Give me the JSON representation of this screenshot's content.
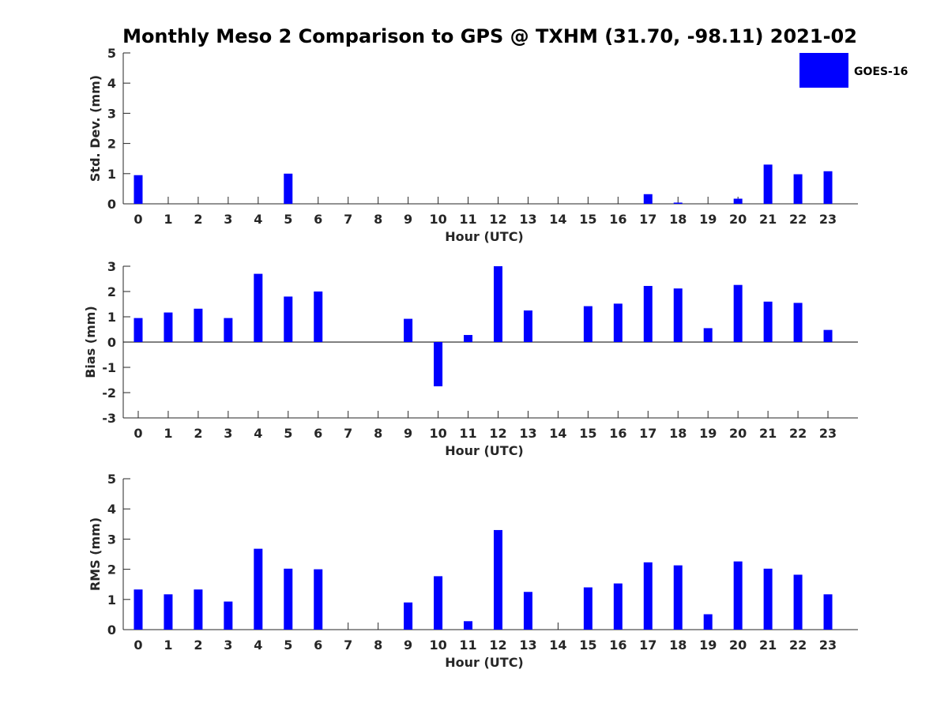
{
  "chart_data": [
    {
      "type": "bar",
      "title": "Monthly Meso 2 Comparison to GPS @ TXHM (31.70, -98.11) 2021-02",
      "xlabel": "Hour (UTC)",
      "ylabel": "Std. Dev. (mm)",
      "ylim": [
        0,
        5
      ],
      "yticks": [
        "0",
        "1",
        "2",
        "3",
        "4",
        "5"
      ],
      "categories": [
        "0",
        "1",
        "2",
        "3",
        "4",
        "5",
        "6",
        "7",
        "8",
        "9",
        "10",
        "11",
        "12",
        "13",
        "14",
        "15",
        "16",
        "17",
        "18",
        "19",
        "20",
        "21",
        "22",
        "23"
      ],
      "series": [
        {
          "name": "GOES-16",
          "values": [
            0.95,
            0,
            0,
            0,
            0,
            1.0,
            0,
            0,
            0,
            0,
            0,
            0,
            0,
            0,
            0,
            0,
            0,
            0.32,
            0.04,
            0,
            0.17,
            1.3,
            0.98,
            1.08
          ]
        }
      ]
    },
    {
      "type": "bar",
      "xlabel": "Hour (UTC)",
      "ylabel": "Bias (mm)",
      "ylim": [
        -3,
        3
      ],
      "yticks": [
        "-3",
        "-2",
        "-1",
        "0",
        "1",
        "2",
        "3"
      ],
      "categories": [
        "0",
        "1",
        "2",
        "3",
        "4",
        "5",
        "6",
        "7",
        "8",
        "9",
        "10",
        "11",
        "12",
        "13",
        "14",
        "15",
        "16",
        "17",
        "18",
        "19",
        "20",
        "21",
        "22",
        "23"
      ],
      "series": [
        {
          "name": "GOES-16",
          "values": [
            0.95,
            1.17,
            1.32,
            0.95,
            2.7,
            1.8,
            2.0,
            0,
            0,
            0.92,
            -1.75,
            0.28,
            3.0,
            1.25,
            0,
            1.42,
            1.52,
            2.22,
            2.12,
            0.55,
            2.26,
            1.6,
            1.55,
            0.48
          ]
        }
      ]
    },
    {
      "type": "bar",
      "xlabel": "Hour (UTC)",
      "ylabel": "RMS (mm)",
      "ylim": [
        0,
        5
      ],
      "yticks": [
        "0",
        "1",
        "2",
        "3",
        "4",
        "5"
      ],
      "categories": [
        "0",
        "1",
        "2",
        "3",
        "4",
        "5",
        "6",
        "7",
        "8",
        "9",
        "10",
        "11",
        "12",
        "13",
        "14",
        "15",
        "16",
        "17",
        "18",
        "19",
        "20",
        "21",
        "22",
        "23"
      ],
      "series": [
        {
          "name": "GOES-16",
          "values": [
            1.33,
            1.17,
            1.33,
            0.93,
            2.68,
            2.02,
            2.0,
            0,
            0,
            0.9,
            1.77,
            0.28,
            3.3,
            1.25,
            0,
            1.4,
            1.53,
            2.23,
            2.13,
            0.51,
            2.26,
            2.02,
            1.82,
            1.17
          ]
        }
      ]
    }
  ],
  "legend": {
    "label": "GOES-16",
    "color": "#0000ff"
  },
  "colors": {
    "bar": "#0000ff",
    "axis": "#262626",
    "background": "#ffffff"
  }
}
